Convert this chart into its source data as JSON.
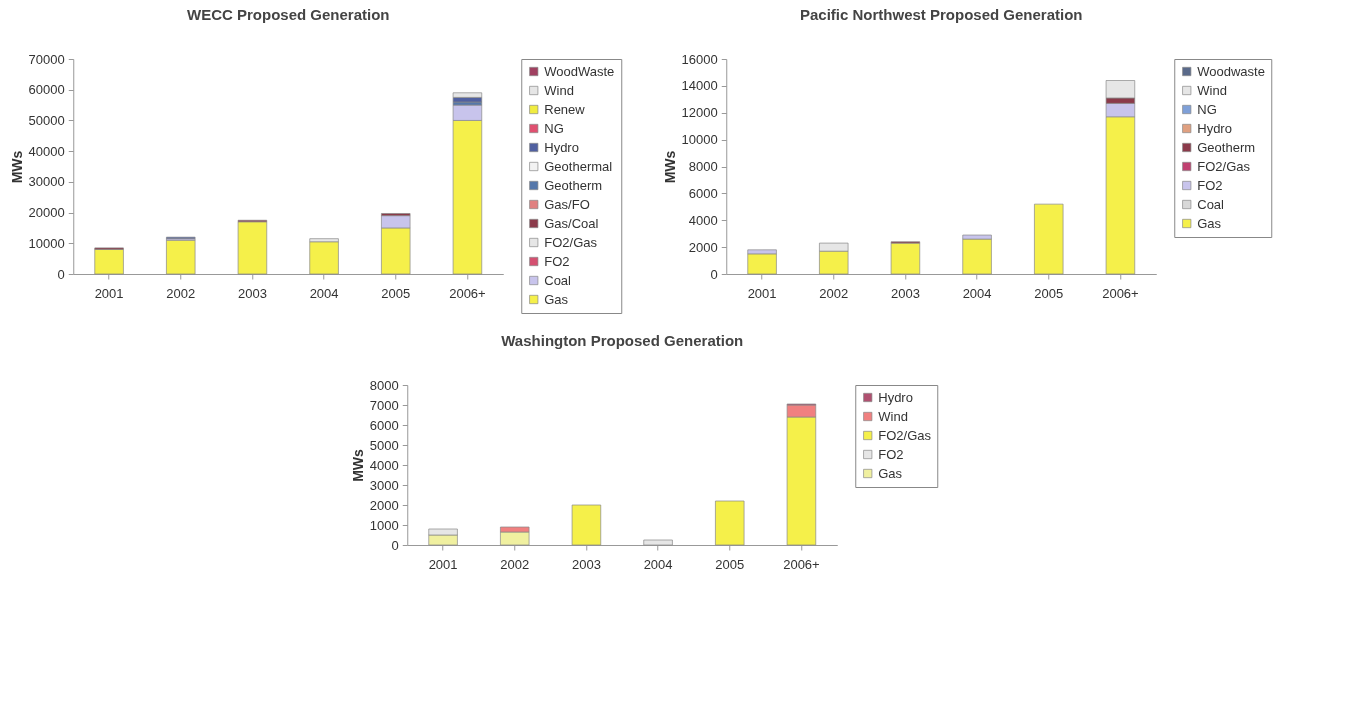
{
  "chart_data": [
    {
      "type": "bar",
      "title": "WECC Proposed Generation",
      "ylabel": "MWs",
      "stacked": true,
      "grid": false,
      "legend": "right",
      "categories": [
        "2001",
        "2002",
        "2003",
        "2004",
        "2005",
        "2006+"
      ],
      "ylim": [
        0,
        70000
      ],
      "yticks": [
        0,
        10000,
        20000,
        30000,
        40000,
        50000,
        60000,
        70000
      ],
      "series": [
        {
          "name": "Gas",
          "color": "#f5f04a",
          "values": [
            8000,
            11000,
            17000,
            10500,
            15000,
            50000
          ]
        },
        {
          "name": "Coal",
          "color": "#c8c4ec",
          "values": [
            0,
            500,
            0,
            null,
            4000,
            5000
          ]
        },
        {
          "name": "FO2",
          "color": "#d45070",
          "values": [
            0,
            0,
            0,
            0,
            0,
            0
          ]
        },
        {
          "name": "FO2/Gas",
          "color": "#e6e6e6",
          "values": [
            0,
            0,
            0,
            1000,
            0,
            0
          ]
        },
        {
          "name": "Gas/Coal",
          "color": "#8b3a4a",
          "values": [
            500,
            0,
            500,
            0,
            700,
            0
          ]
        },
        {
          "name": "Gas/FO",
          "color": "#e08080",
          "values": [
            0,
            0,
            0,
            0,
            0,
            0
          ]
        },
        {
          "name": "Geotherm",
          "color": "#5577aa",
          "values": [
            0,
            0,
            0,
            0,
            0,
            1000
          ]
        },
        {
          "name": "Geothermal",
          "color": "#f2f2f2",
          "values": [
            0,
            0,
            0,
            0,
            0,
            0
          ]
        },
        {
          "name": "Hydro",
          "color": "#5060a0",
          "values": [
            0,
            500,
            0,
            0,
            0,
            1500
          ]
        },
        {
          "name": "NG",
          "color": "#e05070",
          "values": [
            0,
            0,
            0,
            0,
            0,
            0
          ]
        },
        {
          "name": "Renew",
          "color": "#f0ec40",
          "values": [
            0,
            0,
            0,
            0,
            0,
            0
          ]
        },
        {
          "name": "Wind",
          "color": "#e6e6e6",
          "values": [
            0,
            0,
            0,
            0,
            0,
            1500
          ]
        },
        {
          "name": "WoodWaste",
          "color": "#a04060",
          "values": [
            0,
            0,
            0,
            0,
            0,
            0
          ]
        }
      ]
    },
    {
      "type": "bar",
      "title": "Pacific Northwest Proposed Generation",
      "ylabel": "MWs",
      "stacked": true,
      "grid": false,
      "legend": "right",
      "categories": [
        "2001",
        "2002",
        "2003",
        "2004",
        "2005",
        "2006+"
      ],
      "ylim": [
        0,
        16000
      ],
      "yticks": [
        0,
        2000,
        4000,
        6000,
        8000,
        10000,
        12000,
        14000,
        16000
      ],
      "series": [
        {
          "name": "Gas",
          "color": "#f5f04a",
          "values": [
            1500,
            1700,
            2300,
            2600,
            5200,
            11700
          ]
        },
        {
          "name": "Coal",
          "color": "#d8d8d8",
          "values": [
            0,
            0,
            0,
            0,
            0,
            0
          ]
        },
        {
          "name": "FO2",
          "color": "#c8c4ec",
          "values": [
            300,
            0,
            0,
            300,
            0,
            1000
          ]
        },
        {
          "name": "FO2/Gas",
          "color": "#c04070",
          "values": [
            0,
            0,
            0,
            0,
            0,
            0
          ]
        },
        {
          "name": "Geotherm",
          "color": "#8b3a4a",
          "values": [
            0,
            0,
            100,
            0,
            0,
            400
          ]
        },
        {
          "name": "Hydro",
          "color": "#e0a080",
          "values": [
            0,
            0,
            0,
            0,
            0,
            0
          ]
        },
        {
          "name": "NG",
          "color": "#7fa0d8",
          "values": [
            0,
            0,
            0,
            0,
            0,
            0
          ]
        },
        {
          "name": "Wind",
          "color": "#e6e6e6",
          "values": [
            0,
            600,
            0,
            0,
            0,
            1300
          ]
        },
        {
          "name": "Woodwaste",
          "color": "#5a6a8a",
          "values": [
            0,
            0,
            0,
            0,
            0,
            0
          ]
        }
      ]
    },
    {
      "type": "bar",
      "title": "Washington Proposed Generation",
      "ylabel": "MWs",
      "stacked": true,
      "grid": false,
      "legend": "right",
      "categories": [
        "2001",
        "2002",
        "2003",
        "2004",
        "2005",
        "2006+"
      ],
      "ylim": [
        0,
        8000
      ],
      "yticks": [
        0,
        1000,
        2000,
        3000,
        4000,
        5000,
        6000,
        7000,
        8000
      ],
      "series": [
        {
          "name": "Gas",
          "color": "#f0f0a0",
          "values": [
            500,
            650,
            0,
            0,
            0,
            0
          ]
        },
        {
          "name": "FO2",
          "color": "#e6e6e6",
          "values": [
            300,
            0,
            0,
            250,
            0,
            0
          ]
        },
        {
          "name": "FO2/Gas",
          "color": "#f5f04a",
          "values": [
            0,
            0,
            2000,
            0,
            2200,
            6400
          ]
        },
        {
          "name": "Wind",
          "color": "#f08080",
          "values": [
            0,
            250,
            0,
            0,
            0,
            600
          ]
        },
        {
          "name": "Hydro",
          "color": "#b05070",
          "values": [
            0,
            0,
            0,
            0,
            0,
            50
          ]
        }
      ]
    }
  ]
}
